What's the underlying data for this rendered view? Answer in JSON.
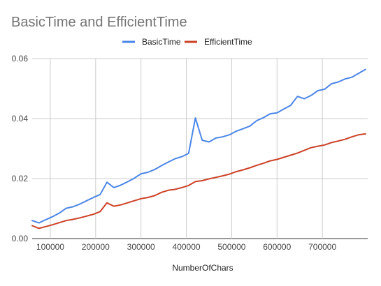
{
  "chart_data": {
    "type": "line",
    "title": "BasicTime and EfficientTime",
    "xlabel": "NumberOfChars",
    "ylabel": "",
    "xlim": [
      60000,
      800000
    ],
    "ylim": [
      0,
      0.06
    ],
    "xticks": [
      100000,
      200000,
      300000,
      400000,
      500000,
      600000,
      700000
    ],
    "xtick_labels": [
      "100000",
      "200000",
      "300000",
      "400000",
      "500000",
      "600000",
      "700000"
    ],
    "yticks": [
      0,
      0.02,
      0.04,
      0.06
    ],
    "ytick_labels": [
      "0.00",
      "0.02",
      "0.04",
      "0.06"
    ],
    "grid": true,
    "legend_position": "top",
    "x": [
      60000,
      75000,
      90000,
      105000,
      120000,
      135000,
      150000,
      165000,
      180000,
      195000,
      210000,
      225000,
      240000,
      255000,
      270000,
      285000,
      300000,
      315000,
      330000,
      345000,
      360000,
      375000,
      390000,
      405000,
      420000,
      435000,
      450000,
      465000,
      480000,
      495000,
      510000,
      525000,
      540000,
      555000,
      570000,
      585000,
      600000,
      615000,
      630000,
      645000,
      660000,
      675000,
      690000,
      705000,
      720000,
      735000,
      750000,
      765000,
      780000,
      795000
    ],
    "series": [
      {
        "name": "BasicTime",
        "color": "#4a86e8",
        "values": [
          0.006,
          0.0052,
          0.0063,
          0.0073,
          0.0085,
          0.0101,
          0.0106,
          0.0115,
          0.0126,
          0.0137,
          0.0147,
          0.0188,
          0.017,
          0.0178,
          0.0189,
          0.0201,
          0.0216,
          0.0221,
          0.023,
          0.0243,
          0.0255,
          0.0266,
          0.0273,
          0.0284,
          0.0402,
          0.0328,
          0.0322,
          0.0335,
          0.0339,
          0.0346,
          0.0358,
          0.0366,
          0.0375,
          0.0393,
          0.0403,
          0.0416,
          0.0419,
          0.0432,
          0.0444,
          0.0474,
          0.0466,
          0.0477,
          0.0493,
          0.0498,
          0.0516,
          0.0522,
          0.0532,
          0.0538,
          0.0551,
          0.0564
        ]
      },
      {
        "name": "EfficientTime",
        "color": "#cc4125",
        "values": [
          0.0043,
          0.0034,
          0.004,
          0.0046,
          0.0053,
          0.006,
          0.0064,
          0.0069,
          0.0075,
          0.0081,
          0.009,
          0.0119,
          0.0108,
          0.0112,
          0.0119,
          0.0126,
          0.0133,
          0.0137,
          0.0143,
          0.0154,
          0.0161,
          0.0164,
          0.017,
          0.0177,
          0.019,
          0.0193,
          0.0199,
          0.0204,
          0.0209,
          0.0215,
          0.0223,
          0.0229,
          0.0236,
          0.0244,
          0.0251,
          0.0259,
          0.0264,
          0.0271,
          0.0278,
          0.0285,
          0.0294,
          0.0303,
          0.0308,
          0.0312,
          0.032,
          0.0325,
          0.0331,
          0.0339,
          0.0346,
          0.0349
        ]
      }
    ]
  }
}
